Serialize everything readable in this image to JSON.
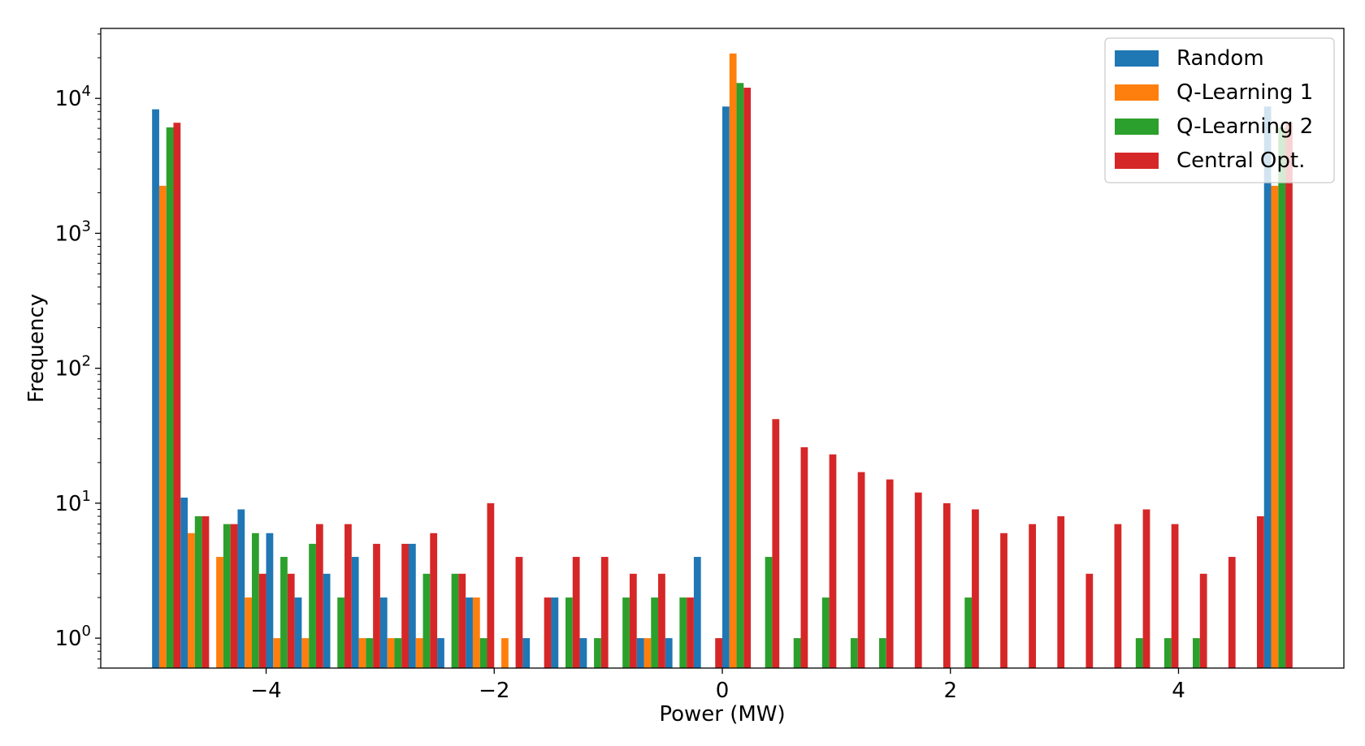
{
  "chart_data": {
    "type": "bar",
    "xlabel": "Power (MW)",
    "ylabel": "Frequency",
    "yscale": "log",
    "xlim": [
      -5.45,
      5.45
    ],
    "ylim": [
      0.6,
      33000
    ],
    "x_ticks": [
      {
        "value": -4,
        "label": "−4"
      },
      {
        "value": -2,
        "label": "−2"
      },
      {
        "value": 0,
        "label": "0"
      },
      {
        "value": 2,
        "label": "2"
      },
      {
        "value": 4,
        "label": "4"
      }
    ],
    "y_ticks": [
      {
        "value": 1,
        "base": "10",
        "exp": "0"
      },
      {
        "value": 10,
        "base": "10",
        "exp": "1"
      },
      {
        "value": 100,
        "base": "10",
        "exp": "2"
      },
      {
        "value": 1000,
        "base": "10",
        "exp": "3"
      },
      {
        "value": 10000,
        "base": "10",
        "exp": "4"
      }
    ],
    "grid": false,
    "legend_position": "top-right",
    "bin_width": 0.25,
    "bin_starts": [
      -5.0,
      -4.75,
      -4.5,
      -4.25,
      -4.0,
      -3.75,
      -3.5,
      -3.25,
      -3.0,
      -2.75,
      -2.5,
      -2.25,
      -2.0,
      -1.75,
      -1.5,
      -1.25,
      -1.0,
      -0.75,
      -0.5,
      -0.25,
      0.0,
      0.25,
      0.5,
      0.75,
      1.0,
      1.25,
      1.5,
      1.75,
      2.0,
      2.25,
      2.5,
      2.75,
      3.0,
      3.25,
      3.5,
      3.75,
      4.0,
      4.25,
      4.5,
      4.75
    ],
    "series": [
      {
        "name": "Random",
        "color": "#1f77b4",
        "values": [
          8300,
          11,
          0,
          9,
          6,
          2,
          3,
          4,
          2,
          5,
          1,
          2,
          0,
          1,
          2,
          1,
          0,
          1,
          1,
          4,
          8700,
          0,
          0,
          0,
          0,
          0,
          0,
          0,
          0,
          0,
          0,
          0,
          0,
          0,
          0,
          0,
          0,
          0,
          0,
          8700
        ]
      },
      {
        "name": "Q-Learning 1",
        "color": "#ff7f0e",
        "values": [
          2250,
          6,
          4,
          2,
          1,
          1,
          0,
          1,
          1,
          1,
          0,
          2,
          1,
          0,
          0,
          0,
          0,
          1,
          0,
          0,
          21500,
          0,
          0,
          0,
          0,
          0,
          0,
          0,
          0,
          0,
          0,
          0,
          0,
          0,
          0,
          0,
          0,
          0,
          0,
          2250
        ]
      },
      {
        "name": "Q-Learning 2",
        "color": "#2ca02c",
        "values": [
          6100,
          8,
          7,
          6,
          4,
          5,
          2,
          1,
          1,
          3,
          3,
          1,
          0,
          0,
          2,
          1,
          2,
          2,
          2,
          0,
          13000,
          4,
          1,
          2,
          1,
          1,
          0,
          0,
          2,
          0,
          0,
          0,
          0,
          0,
          1,
          1,
          1,
          0,
          0,
          6100
        ]
      },
      {
        "name": "Central Opt.",
        "color": "#d62728",
        "values": [
          6600,
          8,
          7,
          3,
          3,
          7,
          7,
          5,
          5,
          6,
          3,
          10,
          4,
          2,
          4,
          4,
          3,
          3,
          2,
          1,
          12000,
          42,
          26,
          23,
          17,
          15,
          12,
          10,
          9,
          6,
          7,
          8,
          3,
          7,
          9,
          7,
          3,
          4,
          8,
          6600
        ]
      }
    ]
  }
}
